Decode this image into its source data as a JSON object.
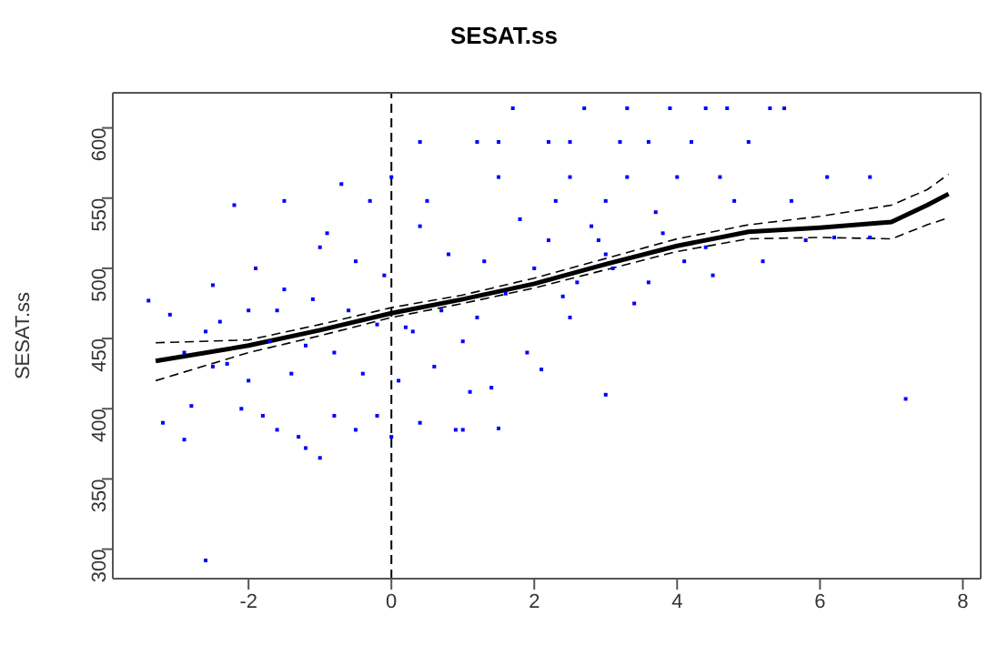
{
  "chart_data": {
    "type": "scatter",
    "title": "SESAT.ss",
    "ylabel": "SESAT.ss",
    "xlim": [
      -3.9,
      8.25
    ],
    "xticks": [
      -2,
      0,
      2,
      4,
      6,
      8
    ],
    "ylim": [
      279,
      625
    ],
    "yticks": [
      300,
      350,
      400,
      450,
      500,
      550,
      600
    ],
    "ref_lines": [
      {
        "axis": "x",
        "value": 0,
        "color": "#000000",
        "line_style": "dashed"
      }
    ],
    "series": [
      {
        "color": "#0000ff",
        "marker": "square",
        "x": [
          -3.4,
          -3.1,
          -3.2,
          -2.9,
          -2.6,
          -2.8,
          -2.5,
          -2.2,
          -2.5,
          -2.0,
          -1.8,
          -1.6,
          -1.3,
          -1.0,
          -1.2,
          -0.8,
          -0.5,
          -0.2,
          0,
          0.4,
          0.9,
          1.0,
          -0.7,
          0.4,
          1.2,
          1.5,
          1.7,
          2.7,
          3.3,
          3.9,
          4.4,
          4.7,
          5.3,
          5.5,
          2.2,
          2.5,
          3.2,
          3.6,
          4.2,
          5.0,
          0,
          1.5,
          2.5,
          3.3,
          4.0,
          4.6,
          6.1,
          6.7,
          -1.5,
          -0.3,
          0.5,
          2.3,
          3.0,
          4.8,
          5.6,
          -2.9,
          -2.6,
          -2.3,
          -2.0,
          -1.7,
          -1.4,
          -1.1,
          -0.8,
          -0.5,
          -0.2,
          0.1,
          0.4,
          0.7,
          1.0,
          1.3,
          1.6,
          1.9,
          2.2,
          2.5,
          2.8,
          3.1,
          3.4,
          3.7,
          4.1,
          4.5,
          -2.4,
          -1.9,
          -1.5,
          -1.0,
          -0.6,
          -0.1,
          0.3,
          0.8,
          1.2,
          1.8,
          2.4,
          3.0,
          3.6,
          -1.2,
          -0.4,
          0.6,
          1.4,
          2.0,
          2.9,
          3.8,
          4.4,
          5.2,
          5.8,
          6.2,
          6.7,
          7.2,
          1.5,
          3.0,
          2.1,
          2.6,
          -0.9,
          0.2,
          1.1,
          -2.1,
          -1.6
        ],
        "values": [
          477,
          467,
          390,
          378,
          292,
          402,
          488,
          545,
          430,
          420,
          395,
          385,
          380,
          365,
          372,
          395,
          385,
          395,
          380,
          390,
          385,
          385,
          560,
          590,
          590,
          590,
          614,
          614,
          614,
          614,
          614,
          614,
          614,
          614,
          590,
          590,
          590,
          590,
          590,
          590,
          565,
          565,
          565,
          565,
          565,
          565,
          565,
          565,
          548,
          548,
          548,
          548,
          548,
          548,
          548,
          440,
          455,
          432,
          470,
          448,
          425,
          478,
          440,
          505,
          460,
          420,
          530,
          470,
          448,
          505,
          482,
          440,
          520,
          465,
          530,
          500,
          475,
          540,
          505,
          495,
          462,
          500,
          485,
          515,
          470,
          495,
          455,
          510,
          465,
          535,
          480,
          510,
          490,
          445,
          425,
          430,
          415,
          500,
          520,
          525,
          515,
          505,
          520,
          522,
          522,
          407,
          386,
          410,
          428,
          490,
          525,
          458,
          412,
          400,
          470
        ]
      },
      {
        "type": "line",
        "color": "#000000",
        "line_style": "solid",
        "x": [
          -3.3,
          -2,
          -1,
          0,
          1,
          2,
          3,
          4,
          5,
          6,
          7,
          7.5,
          7.8
        ],
        "values": [
          434,
          445,
          456,
          468,
          478,
          489,
          503,
          516,
          526,
          529,
          533,
          545,
          553
        ]
      },
      {
        "type": "line",
        "color": "#000000",
        "line_style": "dashed",
        "x": [
          -3.3,
          -2,
          -1,
          0,
          1,
          2,
          3,
          4,
          5,
          6,
          7,
          7.5,
          7.8
        ],
        "values": [
          420,
          440,
          452,
          465,
          475,
          486,
          499,
          512,
          521,
          522,
          521,
          531,
          536
        ]
      },
      {
        "type": "line",
        "color": "#000000",
        "line_style": "dashed",
        "x": [
          -3.3,
          -2,
          -1,
          0,
          1,
          2,
          3,
          4,
          5,
          6,
          7,
          7.5,
          7.8
        ],
        "values": [
          447,
          449,
          460,
          472,
          481,
          493,
          507,
          521,
          531,
          537,
          545,
          556,
          567
        ]
      }
    ]
  }
}
